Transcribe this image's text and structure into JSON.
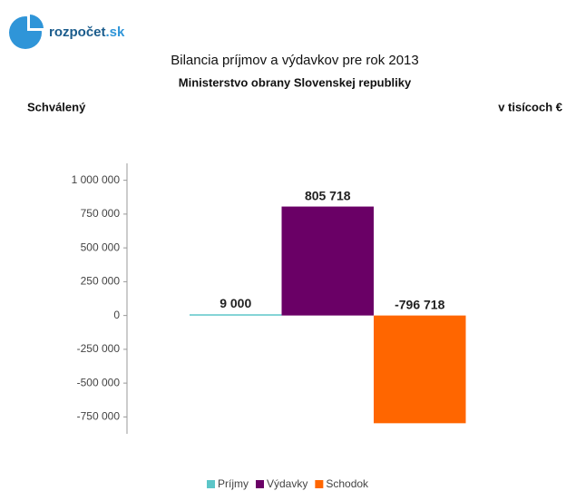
{
  "logo": "rozpočet",
  "logo_suffix": ".sk",
  "chart_data": {
    "type": "bar",
    "title": "Bilancia príjmov a výdavkov pre rok 2013",
    "subtitle": "Ministerstvo obrany Slovenskej republiky",
    "left_label": "Schválený",
    "unit_label": "v tisícoch €",
    "categories": [
      null
    ],
    "series": [
      {
        "name": "Príjmy",
        "color": "#5cc6c8",
        "values": [
          9000
        ],
        "value_labels": [
          "9 000"
        ]
      },
      {
        "name": "Výdavky",
        "color": "#6a0066",
        "values": [
          805718
        ],
        "value_labels": [
          "805 718"
        ]
      },
      {
        "name": "Schodok",
        "color": "#ff6600",
        "values": [
          -796718
        ],
        "value_labels": [
          "-796 718"
        ]
      }
    ],
    "ylim": [
      -875000,
      1125000
    ],
    "yticks": [
      {
        "value": -750000,
        "label": "-750 000"
      },
      {
        "value": -500000,
        "label": "-500 000"
      },
      {
        "value": -250000,
        "label": "-250 000"
      },
      0,
      {
        "value": 250000,
        "label": "250 000"
      },
      {
        "value": 500000,
        "label": "500 000"
      },
      {
        "value": 750000,
        "label": "750 000"
      },
      {
        "value": 1000000,
        "label": "1 000 000"
      }
    ],
    "grid": false,
    "legend": "bottom"
  }
}
